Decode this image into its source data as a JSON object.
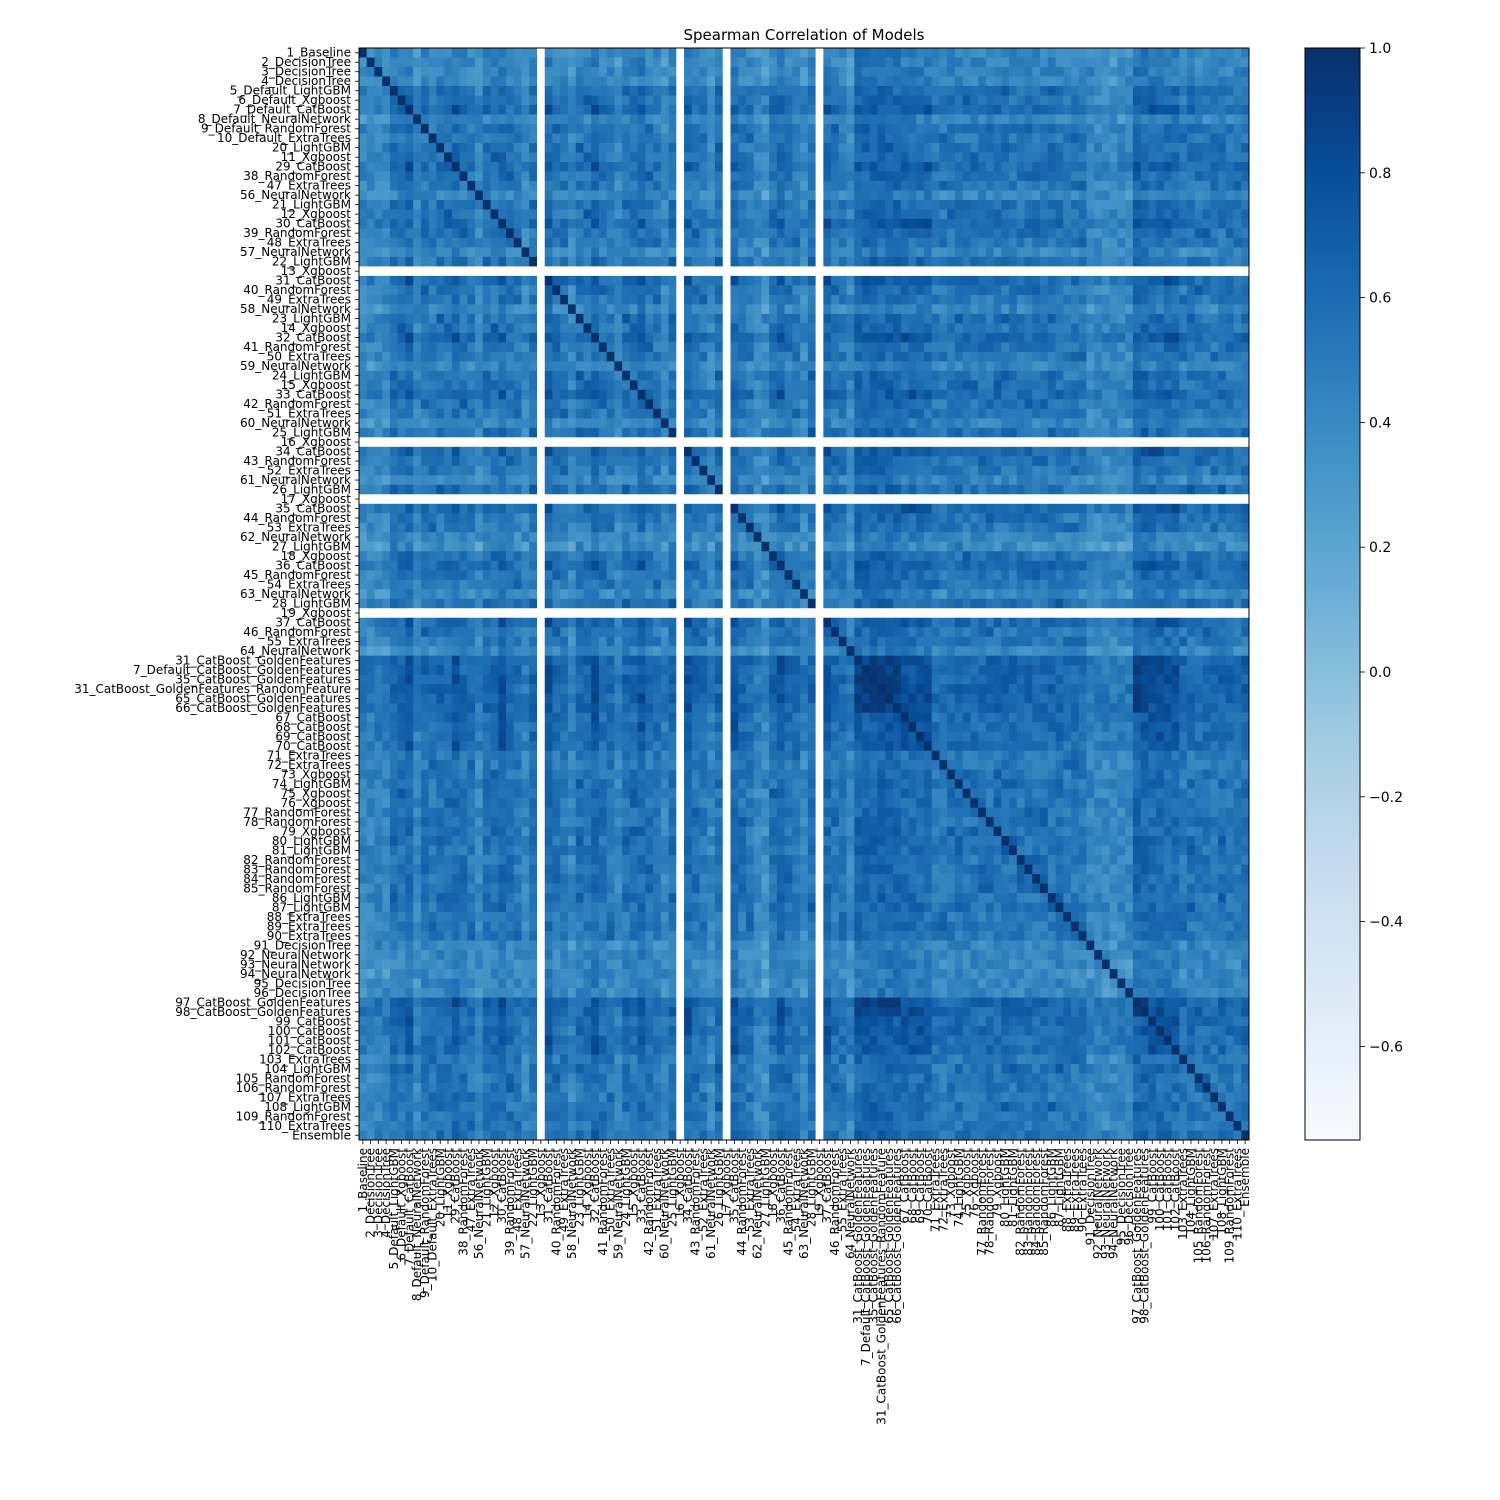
{
  "chart_data": {
    "type": "heatmap",
    "title": "Spearman Correlation of Models",
    "xlabel": "",
    "ylabel": "",
    "labels": [
      "1_Baseline",
      "2_DecisionTree",
      "3_DecisionTree",
      "4_DecisionTree",
      "5_Default_LightGBM",
      "6_Default_Xgboost",
      "7_Default_CatBoost",
      "8_Default_NeuralNetwork",
      "9_Default_RandomForest",
      "10_Default_ExtraTrees",
      "20_LightGBM",
      "11_Xgboost",
      "29_CatBoost",
      "38_RandomForest",
      "47_ExtraTrees",
      "56_NeuralNetwork",
      "21_LightGBM",
      "12_Xgboost",
      "30_CatBoost",
      "39_RandomForest",
      "48_ExtraTrees",
      "57_NeuralNetwork",
      "22_LightGBM",
      "13_Xgboost",
      "31_CatBoost",
      "40_RandomForest",
      "49_ExtraTrees",
      "58_NeuralNetwork",
      "23_LightGBM",
      "14_Xgboost",
      "32_CatBoost",
      "41_RandomForest",
      "50_ExtraTrees",
      "59_NeuralNetwork",
      "24_LightGBM",
      "15_Xgboost",
      "33_CatBoost",
      "42_RandomForest",
      "51_ExtraTrees",
      "60_NeuralNetwork",
      "25_LightGBM",
      "16_Xgboost",
      "34_CatBoost",
      "43_RandomForest",
      "52_ExtraTrees",
      "61_NeuralNetwork",
      "26_LightGBM",
      "17_Xgboost",
      "35_CatBoost",
      "44_RandomForest",
      "53_ExtraTrees",
      "62_NeuralNetwork",
      "27_LightGBM",
      "18_Xgboost",
      "36_CatBoost",
      "45_RandomForest",
      "54_ExtraTrees",
      "63_NeuralNetwork",
      "28_LightGBM",
      "19_Xgboost",
      "37_CatBoost",
      "46_RandomForest",
      "55_ExtraTrees",
      "64_NeuralNetwork",
      "31_CatBoost_GoldenFeatures",
      "7_Default_CatBoost_GoldenFeatures",
      "35_CatBoost_GoldenFeatures",
      "31_CatBoost_GoldenFeatures_RandomFeature",
      "65_CatBoost_GoldenFeatures",
      "66_CatBoost_GoldenFeatures",
      "67_CatBoost",
      "68_CatBoost",
      "69_CatBoost",
      "70_CatBoost",
      "71_ExtraTrees",
      "72_ExtraTrees",
      "73_Xgboost",
      "74_LightGBM",
      "75_Xgboost",
      "76_Xgboost",
      "77_RandomForest",
      "78_RandomForest",
      "79_Xgboost",
      "80_LightGBM",
      "81_LightGBM",
      "82_RandomForest",
      "83_RandomForest",
      "84_RandomForest",
      "85_RandomForest",
      "86_LightGBM",
      "87_LightGBM",
      "88_ExtraTrees",
      "89_ExtraTrees",
      "90_ExtraTrees",
      "91_DecisionTree",
      "92_NeuralNetwork",
      "93_NeuralNetwork",
      "94_NeuralNetwork",
      "95_DecisionTree",
      "96_DecisionTree",
      "97_CatBoost_GoldenFeatures",
      "98_CatBoost_GoldenFeatures",
      "99_CatBoost",
      "100_CatBoost",
      "101_CatBoost",
      "102_CatBoost",
      "103_ExtraTrees",
      "104_LightGBM",
      "105_RandomForest",
      "106_RandomForest",
      "107_ExtraTrees",
      "108_LightGBM",
      "109_RandomForest",
      "110_ExtraTrees",
      "Ensemble"
    ],
    "missing_models": [
      "13_Xgboost",
      "16_Xgboost",
      "17_Xgboost",
      "19_Xgboost"
    ],
    "vmin": -0.75,
    "vmax": 1.0,
    "colormap": "Blues",
    "colormap_stops": [
      "#f7fbff",
      "#deebf7",
      "#c6dbef",
      "#9ecae1",
      "#6baed6",
      "#4292c6",
      "#2171b5",
      "#08519c",
      "#08306b"
    ],
    "colorbar_ticks": [
      1.0,
      0.8,
      0.6,
      0.4,
      0.2,
      0.0,
      -0.2,
      -0.4,
      -0.6
    ],
    "colorbar_tick_labels": [
      "1.0",
      "0.8",
      "0.6",
      "0.4",
      "0.2",
      "0.0",
      "−0.2",
      "−0.4",
      "−0.6"
    ],
    "grid": false,
    "colorbar_position": "right"
  }
}
